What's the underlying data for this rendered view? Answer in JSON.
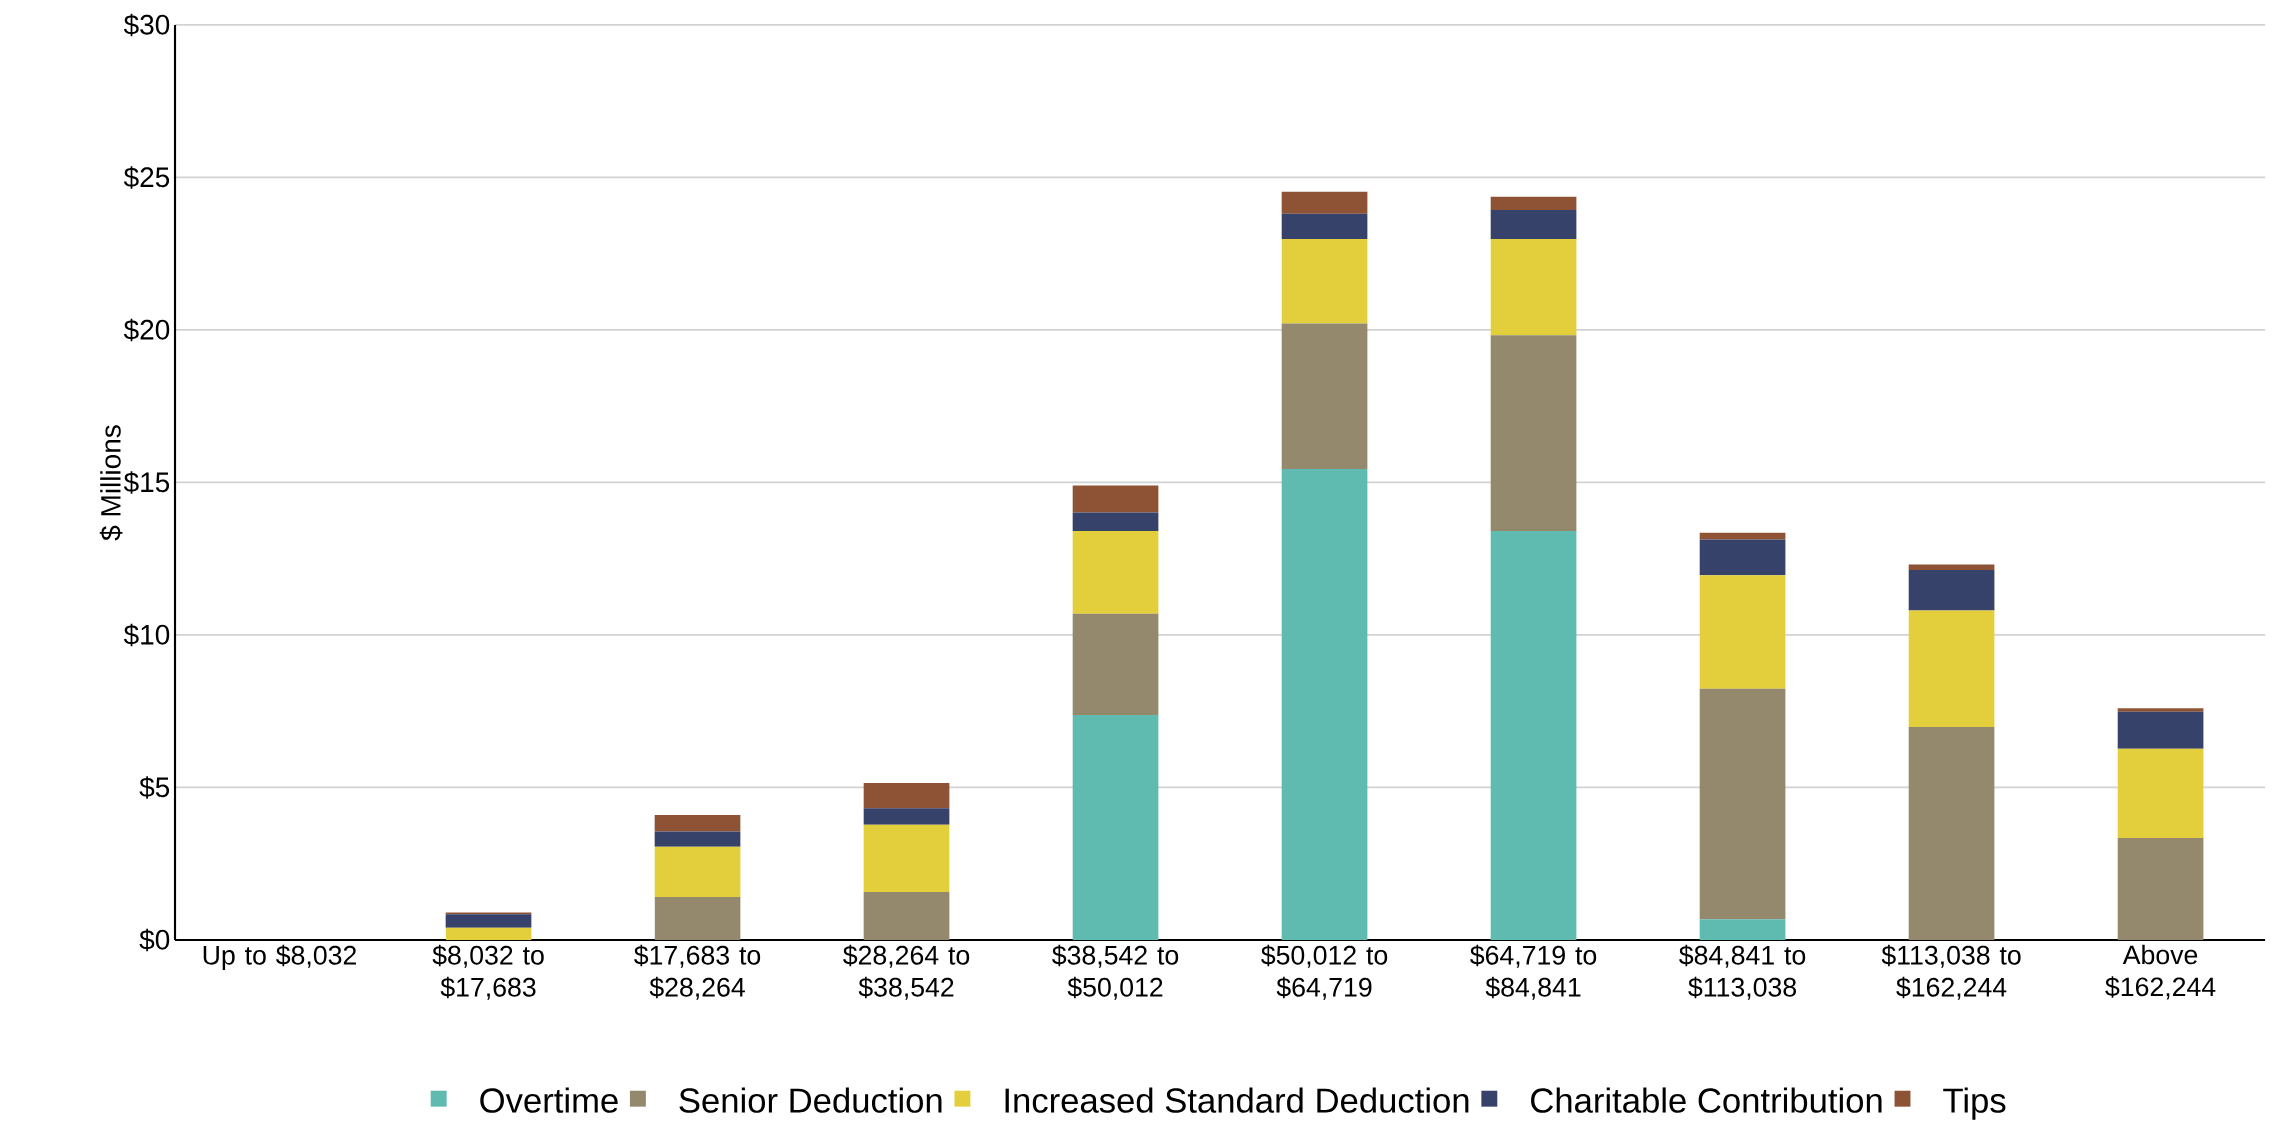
{
  "chart_data": {
    "type": "bar",
    "stacked": true,
    "ylabel": "$ Millions",
    "categories": [
      "Up to $8,032",
      "$8,032 to $17,683",
      "$17,683 to $28,264",
      "$28,264 to $38,542",
      "$38,542 to $50,012",
      "$50,012 to $64,719",
      "$64,719 to $84,841",
      "$84,841 to $113,038",
      "$113,038 to $162,244",
      "Above $162,244"
    ],
    "series": [
      {
        "name": "Overtime",
        "color": "#5fbab0",
        "values": [
          0,
          0,
          0,
          0,
          7.38,
          15.44,
          13.41,
          0.68,
          0,
          0
        ]
      },
      {
        "name": "Senior Deduction",
        "color": "#94896d",
        "values": [
          0,
          0,
          1.41,
          1.57,
          3.32,
          4.77,
          6.42,
          7.56,
          6.98,
          3.34
        ]
      },
      {
        "name": "Increased Standard Deduction",
        "color": "#e3ce3c",
        "values": [
          0,
          0.4,
          1.65,
          2.21,
          2.71,
          2.77,
          3.15,
          3.72,
          3.82,
          2.93
        ]
      },
      {
        "name": "Charitable Contribution",
        "color": "#37426b",
        "values": [
          0,
          0.44,
          0.5,
          0.54,
          0.61,
          0.83,
          0.95,
          1.17,
          1.33,
          1.21
        ]
      },
      {
        "name": "Tips",
        "color": "#8e5334",
        "values": [
          0,
          0.06,
          0.54,
          0.83,
          0.88,
          0.72,
          0.44,
          0.22,
          0.18,
          0.12
        ]
      }
    ],
    "ylim": [
      0,
      30
    ],
    "yticks": [
      {
        "value": 0,
        "label": "$0"
      },
      {
        "value": 5,
        "label": "$5"
      },
      {
        "value": 10,
        "label": "$10"
      },
      {
        "value": 15,
        "label": "$15"
      },
      {
        "value": 20,
        "label": "$20"
      },
      {
        "value": 25,
        "label": "$25"
      },
      {
        "value": 30,
        "label": "$30"
      }
    ],
    "grid": "y",
    "legend": "bottom"
  }
}
